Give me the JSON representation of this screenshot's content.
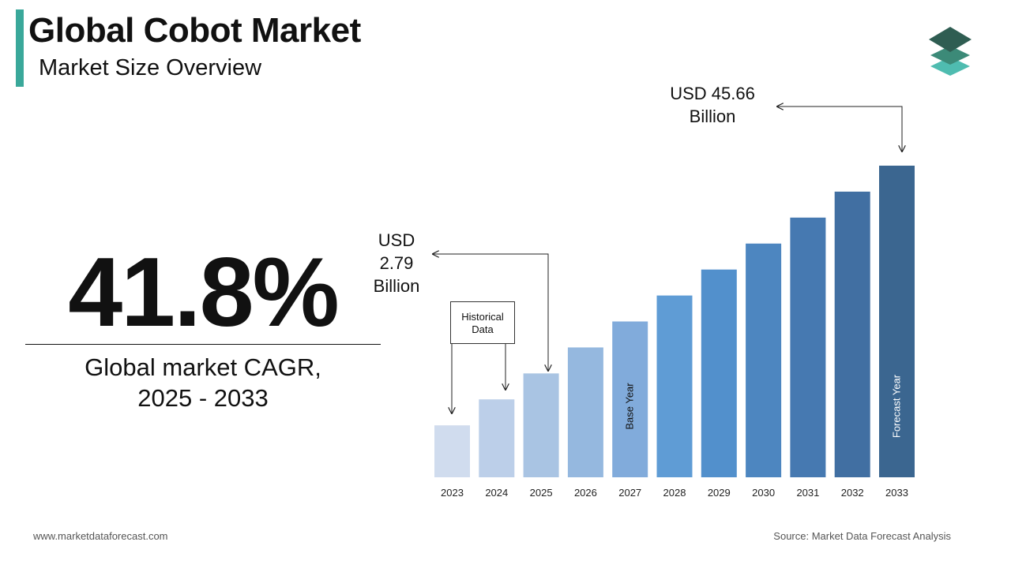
{
  "header": {
    "title": "Global Cobot Market",
    "subtitle": "Market Size Overview",
    "accent_color": "#3aa89a"
  },
  "logo": {
    "icon": "stacked-layers-logo",
    "colors": [
      "#2f5d52",
      "#3c8a78",
      "#4fbcb0"
    ]
  },
  "cagr": {
    "value": "41.8%",
    "label_line1": "Global market CAGR,",
    "label_line2": "2025 - 2033"
  },
  "callouts": {
    "start": {
      "line1": "USD",
      "line2": "2.79",
      "line3": "Billion"
    },
    "end": {
      "line1": "USD 45.66",
      "line2": "Billion"
    },
    "historical": {
      "line1": "Historical",
      "line2": "Data"
    }
  },
  "chart_data": {
    "type": "bar",
    "categories": [
      "2023",
      "2024",
      "2025",
      "2026",
      "2027",
      "2028",
      "2029",
      "2030",
      "2031",
      "2032",
      "2033"
    ],
    "values": [
      2,
      3,
      4,
      5,
      6,
      7,
      8,
      9,
      10,
      11,
      12
    ],
    "bar_colors": [
      "#d0dcee",
      "#bccfe9",
      "#a9c4e3",
      "#95b8df",
      "#81abdb",
      "#5f9cd5",
      "#5290cc",
      "#4d86c0",
      "#4679b1",
      "#416fa2",
      "#3b6690"
    ],
    "bar_labels": {
      "2027": "Base Year",
      "2033": "Forecast Year"
    },
    "title": "",
    "xlabel": "",
    "ylabel": "",
    "grid": false
  },
  "footer": {
    "website": "www.marketdataforecast.com",
    "source": "Source: Market Data Forecast Analysis"
  }
}
